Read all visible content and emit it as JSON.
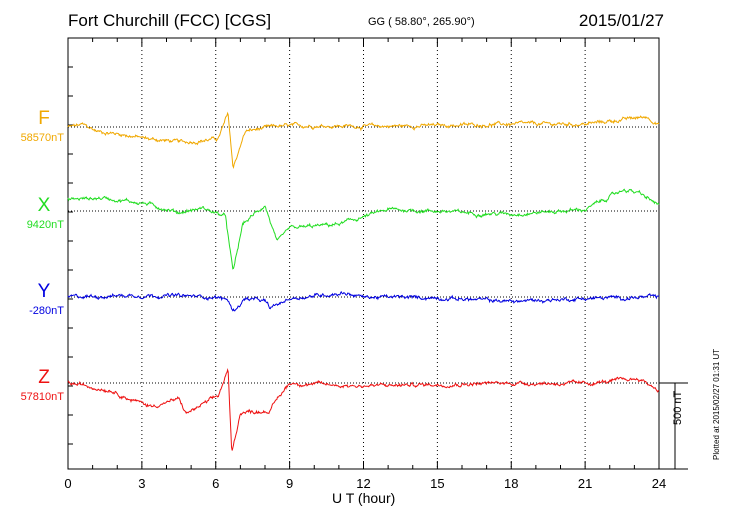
{
  "header": {
    "station": "Fort Churchill (FCC)  [CGS]",
    "coords": "GG ( 58.80°, 265.90°)",
    "date": "2015/01/27"
  },
  "footer": {
    "plotted": "Plotted at 2015/02/27 01:31  UT"
  },
  "chart_data": {
    "type": "line",
    "title": "Fort Churchill (FCC)  [CGS]",
    "xlabel": "U T (hour)",
    "ylabel": "",
    "xlim": [
      0,
      24
    ],
    "xticks": [
      0,
      3,
      6,
      9,
      12,
      15,
      18,
      21,
      24
    ],
    "scale_bar": {
      "value_nT": 500,
      "label": "500 nT"
    },
    "grid": true,
    "series": [
      {
        "name": "F",
        "baseline_label": "58570nT",
        "baseline": 58570,
        "color": "#f0a800",
        "key_times": [
          0,
          0.6,
          1.2,
          2.2,
          3.2,
          4.7,
          6.1,
          6.5,
          6.7,
          7.2,
          8.5,
          10,
          12,
          15,
          18,
          21,
          23.5,
          24
        ],
        "key_values": [
          58570,
          58585,
          58540,
          58520,
          58490,
          58465,
          58490,
          58660,
          58290,
          58540,
          58575,
          58580,
          58575,
          58580,
          58590,
          58590,
          58640,
          58590
        ]
      },
      {
        "name": "X",
        "baseline_label": "9420nT",
        "baseline": 9420,
        "color": "#22dd22",
        "key_times": [
          0,
          1.5,
          3.2,
          4.5,
          5.5,
          6.4,
          6.7,
          7.1,
          8.0,
          8.5,
          9.0,
          11,
          12,
          13,
          15,
          16.5,
          18,
          21,
          22.6,
          23.2,
          24
        ],
        "key_values": [
          9500,
          9510,
          9470,
          9410,
          9440,
          9380,
          9000,
          9330,
          9460,
          9200,
          9300,
          9330,
          9380,
          9430,
          9420,
          9405,
          9400,
          9430,
          9570,
          9540,
          9460
        ]
      },
      {
        "name": "Y",
        "baseline_label": "-280nT",
        "baseline": -280,
        "color": "#0000e0",
        "key_times": [
          0,
          2,
          3.5,
          6,
          6.5,
          6.7,
          7.2,
          8.0,
          8.2,
          9,
          11.2,
          12,
          15,
          18,
          21,
          24
        ],
        "key_values": [
          -280,
          -270,
          -268,
          -280,
          -300,
          -380,
          -290,
          -310,
          -360,
          -290,
          -250,
          -280,
          -285,
          -310,
          -290,
          -280
        ]
      },
      {
        "name": "Z",
        "baseline_label": "57810nT",
        "baseline": 57810,
        "color": "#ee1111",
        "key_times": [
          0,
          1.8,
          2.5,
          3.4,
          4.5,
          4.8,
          6.1,
          6.5,
          6.65,
          7.0,
          8.2,
          8.5,
          9,
          11,
          12,
          15,
          18,
          21,
          23.2,
          24
        ],
        "key_values": [
          57810,
          57760,
          57700,
          57650,
          57700,
          57600,
          57720,
          57900,
          57320,
          57610,
          57620,
          57700,
          57810,
          57795,
          57790,
          57800,
          57810,
          57805,
          57840,
          57760
        ]
      }
    ]
  }
}
